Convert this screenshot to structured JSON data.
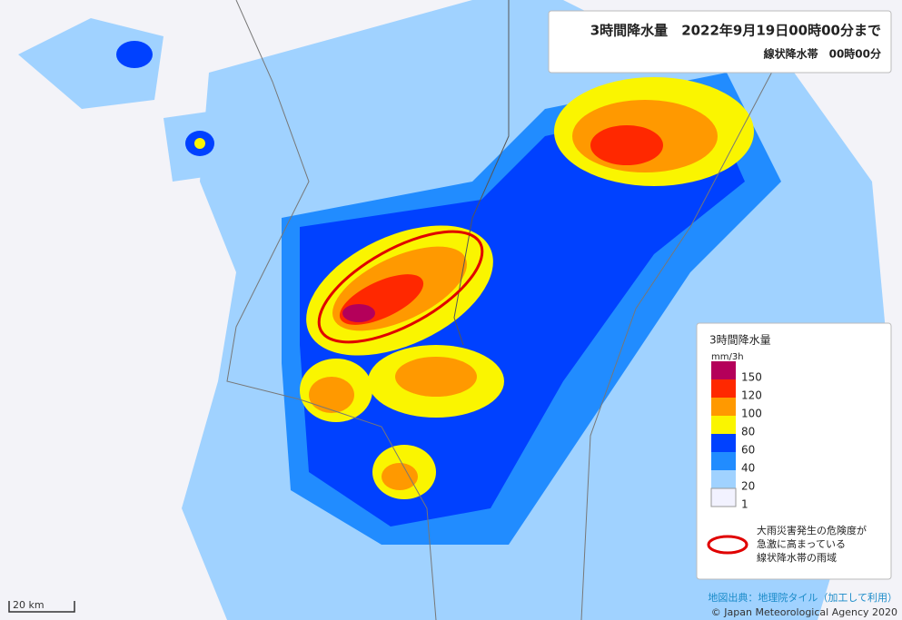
{
  "header": {
    "title": "3時間降水量　2022年9月19日00時00分まで",
    "subtitle": "線状降水帯　00時00分"
  },
  "legend": {
    "title": "3時間降水量",
    "unit": "mm/3h",
    "levels": [
      {
        "label": 150,
        "color": "#b4005a"
      },
      {
        "label": 120,
        "color": "#ff2800"
      },
      {
        "label": 100,
        "color": "#ff9900"
      },
      {
        "label": 80,
        "color": "#faf500"
      },
      {
        "label": 60,
        "color": "#0041ff"
      },
      {
        "label": 40,
        "color": "#218cff"
      },
      {
        "label": 20,
        "color": "#a0d2ff"
      },
      {
        "label": 1,
        "color": "#f2f2ff"
      }
    ],
    "note": [
      "大雨災害発生の危険度が",
      "急激に高まっている",
      "線状降水帯の雨域"
    ]
  },
  "scale": "20 km",
  "credits": [
    "地図出典：地理院タイル（加工して利用）",
    "© Japan Meteorological Agency 2020"
  ]
}
